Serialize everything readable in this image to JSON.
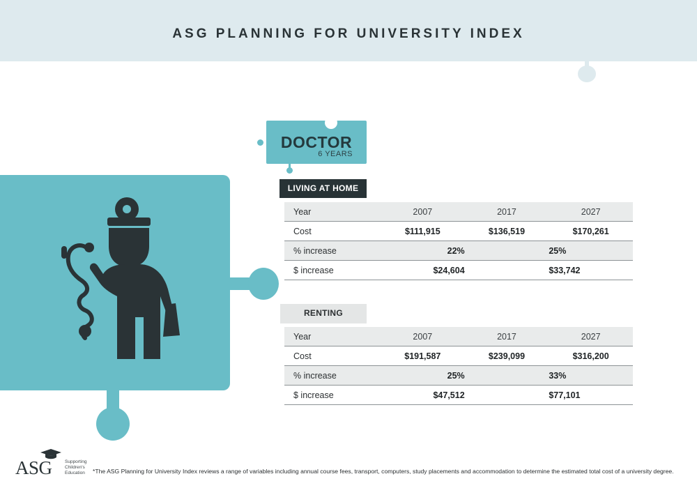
{
  "header": {
    "title": "ASG PLANNING FOR UNIVERSITY INDEX"
  },
  "profession": {
    "title": "DOCTOR",
    "duration": "6 YEARS"
  },
  "living_at_home": {
    "label": "LIVING AT HOME",
    "year_label": "Year",
    "years": [
      "2007",
      "2017",
      "2027"
    ],
    "cost_label": "Cost",
    "costs": [
      "$111,915",
      "$136,519",
      "$170,261"
    ],
    "pct_label": "% increase",
    "pct": [
      "22%",
      "25%"
    ],
    "dollar_label": "$ increase",
    "dollar": [
      "$24,604",
      "$33,742"
    ]
  },
  "renting": {
    "label": "RENTING",
    "year_label": "Year",
    "years": [
      "2007",
      "2017",
      "2027"
    ],
    "cost_label": "Cost",
    "costs": [
      "$191,587",
      "$239,099",
      "$316,200"
    ],
    "pct_label": "% increase",
    "pct": [
      "25%",
      "33%"
    ],
    "dollar_label": "$ increase",
    "dollar": [
      "$47,512",
      "$77,101"
    ]
  },
  "footer": {
    "logo_text": "ASG",
    "logo_tagline": [
      "Supporting",
      "Children's",
      "Education"
    ],
    "footnote": "*The ASG Planning for University Index reviews a range of variables including annual course fees, transport, computers, study placements and accommodation to determine the estimated total cost of a university degree."
  },
  "colors": {
    "teal": "#69bdc7",
    "dark": "#283336",
    "banner": "#deeaee"
  },
  "icons": [
    "doctor-icon",
    "graduation-cap-icon"
  ]
}
